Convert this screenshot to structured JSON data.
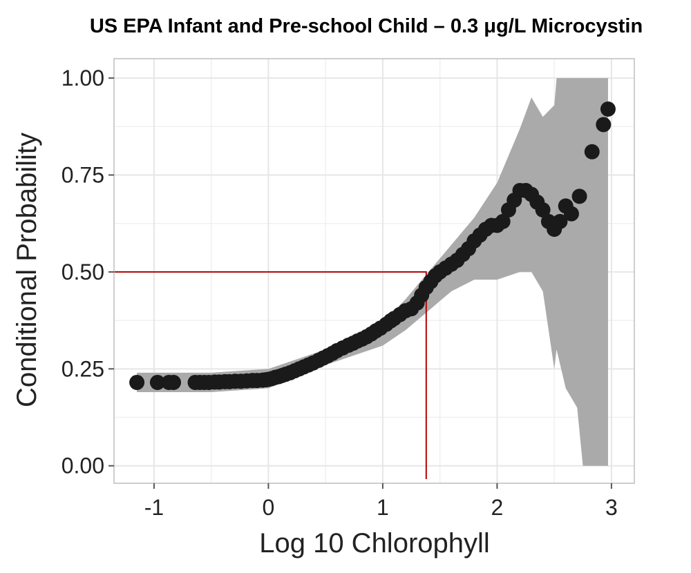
{
  "chart_data": {
    "type": "scatter",
    "title": "US EPA Infant and Pre-school Child – 0.3 μg/L Microcystin",
    "xlabel": "Log 10 Chlorophyll",
    "ylabel": "Conditional Probability",
    "xlim": [
      -1.35,
      3.2
    ],
    "ylim": [
      -0.045,
      1.05
    ],
    "x_ticks": [
      -1,
      0,
      1,
      2,
      3
    ],
    "x_tick_labels": [
      "-1",
      "0",
      "1",
      "2",
      "3"
    ],
    "y_ticks": [
      0.0,
      0.25,
      0.5,
      0.75,
      1.0
    ],
    "y_tick_labels": [
      "0.00",
      "0.25",
      "0.50",
      "0.75",
      "1.00"
    ],
    "grid": true,
    "colors": {
      "points": "#1a1a1a",
      "band": "#aaaaaa",
      "reference_line": "#b30000",
      "grid_major": "#e6e6e6",
      "grid_minor": "#f0f0f0",
      "panel_border": "#bdbdbd"
    },
    "series": [
      {
        "x": [
          -1.15,
          -0.97,
          -0.87,
          -0.83,
          -0.64,
          -0.6,
          -0.56,
          -0.52,
          -0.47,
          -0.43,
          -0.38,
          -0.34,
          -0.29,
          -0.24,
          -0.19,
          -0.14,
          -0.1,
          -0.05,
          -0.02,
          0.0,
          0.03,
          0.06,
          0.09,
          0.12,
          0.15,
          0.19,
          0.23,
          0.27,
          0.31,
          0.35,
          0.39,
          0.44,
          0.48,
          0.52,
          0.56,
          0.6,
          0.65,
          0.7,
          0.74,
          0.78,
          0.82,
          0.86,
          0.9,
          0.94,
          0.98,
          1.03,
          1.07,
          1.1,
          1.15,
          1.2,
          1.25,
          1.3,
          1.34,
          1.38,
          1.42,
          1.46,
          1.5,
          1.55,
          1.6,
          1.65,
          1.7,
          1.75,
          1.8,
          1.85,
          1.9,
          1.95,
          2.0,
          2.05,
          2.1,
          2.15,
          2.2,
          2.25,
          2.3,
          2.35,
          2.4,
          2.45,
          2.5,
          2.55,
          2.6,
          2.65,
          2.72,
          2.83,
          2.93,
          2.97
        ],
        "y": [
          0.215,
          0.215,
          0.215,
          0.215,
          0.215,
          0.215,
          0.215,
          0.215,
          0.216,
          0.216,
          0.217,
          0.217,
          0.218,
          0.218,
          0.219,
          0.22,
          0.22,
          0.221,
          0.222,
          0.223,
          0.225,
          0.228,
          0.23,
          0.233,
          0.236,
          0.24,
          0.245,
          0.25,
          0.255,
          0.26,
          0.265,
          0.272,
          0.278,
          0.284,
          0.29,
          0.297,
          0.304,
          0.311,
          0.316,
          0.322,
          0.327,
          0.333,
          0.34,
          0.348,
          0.355,
          0.365,
          0.374,
          0.38,
          0.39,
          0.4,
          0.405,
          0.42,
          0.44,
          0.46,
          0.475,
          0.49,
          0.5,
          0.51,
          0.52,
          0.53,
          0.545,
          0.56,
          0.58,
          0.595,
          0.61,
          0.62,
          0.62,
          0.63,
          0.66,
          0.685,
          0.71,
          0.71,
          0.7,
          0.68,
          0.66,
          0.63,
          0.61,
          0.63,
          0.67,
          0.65,
          0.695,
          0.81,
          0.88,
          0.92
        ]
      }
    ],
    "confidence_band": {
      "x": [
        -1.15,
        -0.5,
        0.0,
        0.5,
        1.0,
        1.2,
        1.4,
        1.6,
        1.8,
        2.0,
        2.2,
        2.3,
        2.4,
        2.5,
        2.52,
        2.6,
        2.7,
        2.75,
        2.85,
        2.95,
        2.97
      ],
      "lower": [
        0.19,
        0.19,
        0.2,
        0.26,
        0.31,
        0.35,
        0.4,
        0.45,
        0.48,
        0.48,
        0.5,
        0.5,
        0.45,
        0.25,
        0.3,
        0.2,
        0.15,
        0.0,
        0.0,
        0.0,
        0.0
      ],
      "upper": [
        0.24,
        0.24,
        0.25,
        0.3,
        0.37,
        0.43,
        0.5,
        0.57,
        0.64,
        0.73,
        0.87,
        0.95,
        0.9,
        0.93,
        1.0,
        1.0,
        1.0,
        1.0,
        1.0,
        1.0,
        1.0
      ]
    },
    "reference_line": {
      "x": 1.38,
      "y": 0.5
    }
  }
}
